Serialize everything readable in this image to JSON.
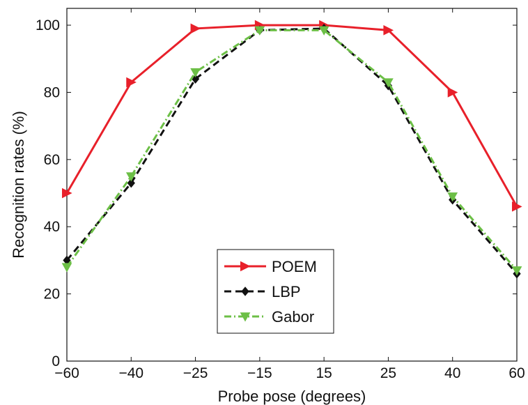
{
  "chart_data": {
    "type": "line",
    "categories": [
      "−60",
      "−40",
      "−25",
      "−15",
      "15",
      "25",
      "40",
      "60"
    ],
    "xlabel": "Probe pose (degrees)",
    "ylabel": "Recognition rates (%)",
    "ylim": [
      0,
      105
    ],
    "yticks": [
      "0",
      "20",
      "40",
      "60",
      "80",
      "100"
    ],
    "grid": false,
    "legend_position": "bottom-center",
    "series": [
      {
        "name": "POEM",
        "color": "#e8202a",
        "line_style": "solid",
        "marker": "triangle-right",
        "values": [
          50,
          83,
          99,
          100,
          100,
          98.5,
          80,
          46
        ]
      },
      {
        "name": "LBP",
        "color": "#111111",
        "line_style": "dashed",
        "marker": "diamond",
        "values": [
          30,
          53,
          84,
          98.5,
          99,
          82,
          48,
          26
        ]
      },
      {
        "name": "Gabor",
        "color": "#6cbf46",
        "line_style": "dash-dot",
        "marker": "triangle-down",
        "values": [
          28,
          55,
          86,
          98.5,
          98.5,
          83,
          49,
          27
        ]
      }
    ]
  }
}
